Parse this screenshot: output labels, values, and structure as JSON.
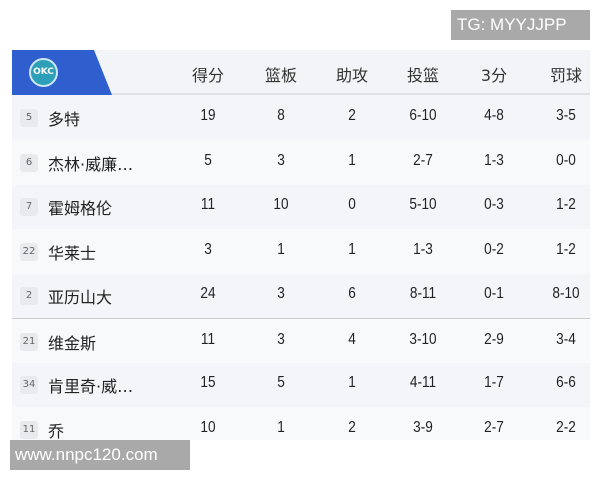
{
  "watermark_top": "TG: MYYJJPP",
  "watermark_bottom": "www.nnpc120.com",
  "team": {
    "logo_text": "OKC",
    "color": "#2f5fcf"
  },
  "columns": [
    "得分",
    "篮板",
    "助攻",
    "投篮",
    "3分",
    "罚球"
  ],
  "rows": [
    {
      "number": "5",
      "name": "多特",
      "stats": [
        "19",
        "8",
        "2",
        "6-10",
        "4-8",
        "3-5"
      ]
    },
    {
      "number": "6",
      "name": "杰林·威廉…",
      "stats": [
        "5",
        "3",
        "1",
        "2-7",
        "1-3",
        "0-0"
      ]
    },
    {
      "number": "7",
      "name": "霍姆格伦",
      "stats": [
        "11",
        "10",
        "0",
        "5-10",
        "0-3",
        "1-2"
      ]
    },
    {
      "number": "22",
      "name": "华莱士",
      "stats": [
        "3",
        "1",
        "1",
        "1-3",
        "0-2",
        "1-2"
      ]
    },
    {
      "number": "2",
      "name": "亚历山大",
      "stats": [
        "24",
        "3",
        "6",
        "8-11",
        "0-1",
        "8-10"
      ]
    },
    {
      "number": "21",
      "name": "维金斯",
      "stats": [
        "11",
        "3",
        "4",
        "3-10",
        "2-9",
        "3-4"
      ]
    },
    {
      "number": "34",
      "name": "肯里奇·威…",
      "stats": [
        "15",
        "5",
        "1",
        "4-11",
        "1-7",
        "6-6"
      ]
    },
    {
      "number": "11",
      "name": "乔",
      "stats": [
        "10",
        "1",
        "2",
        "3-9",
        "2-7",
        "2-2"
      ]
    }
  ]
}
